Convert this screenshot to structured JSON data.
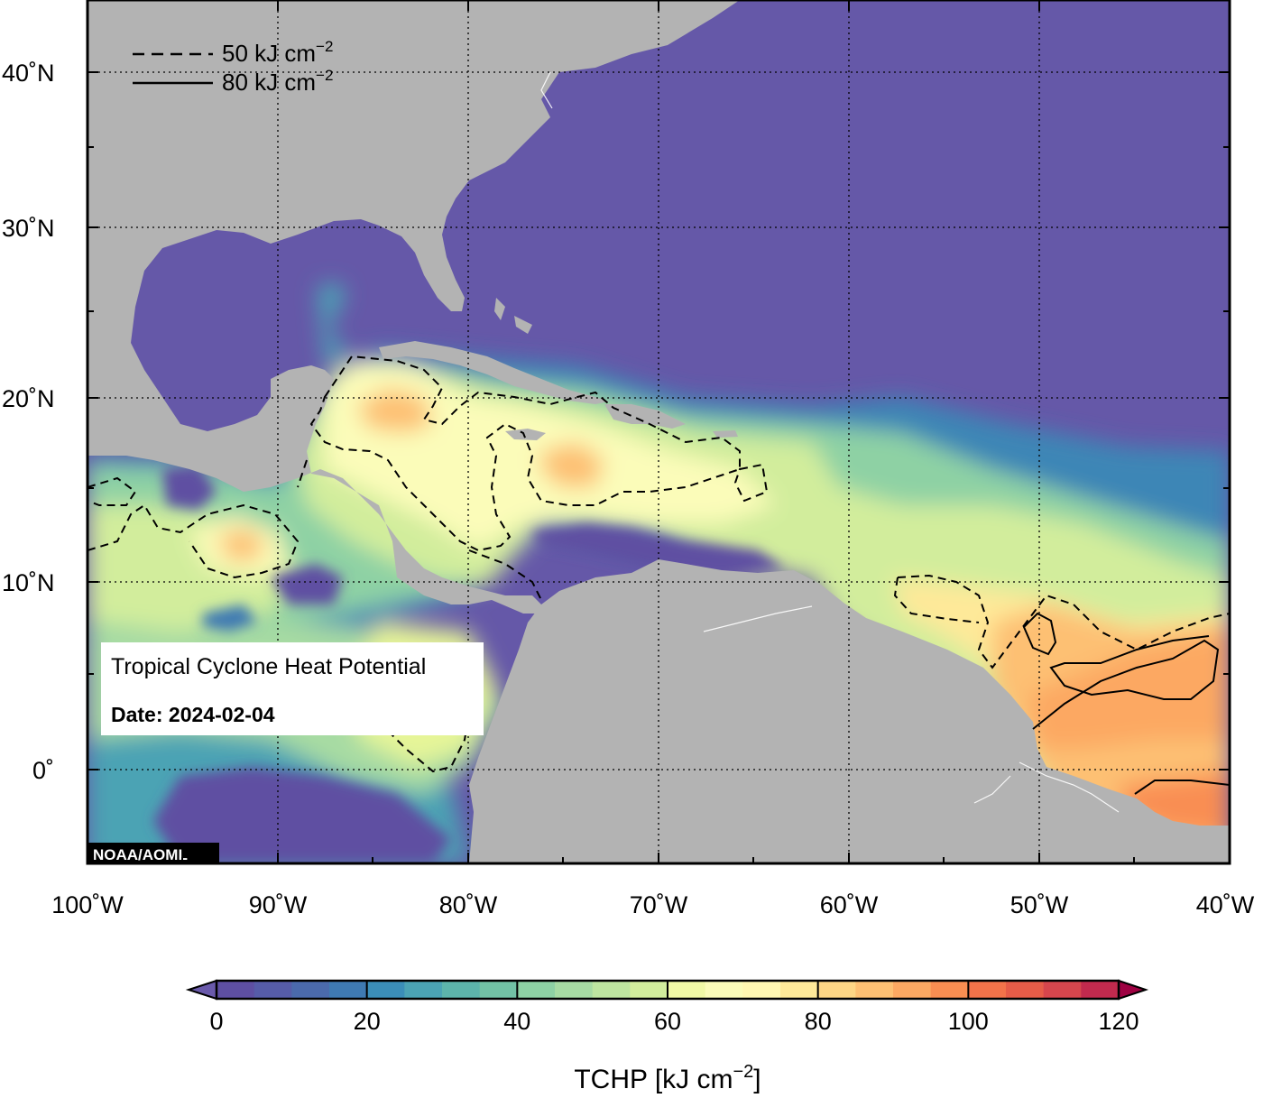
{
  "map": {
    "product_title": "Tropical Cyclone Heat Potential",
    "date_label": "Date: 2024-02-04",
    "credit": "NOAA/AOML",
    "lat_ticks": [
      {
        "value": 40,
        "label": "40˚N"
      },
      {
        "value": 30,
        "label": "30˚N"
      },
      {
        "value": 20,
        "label": "20˚N"
      },
      {
        "value": 10,
        "label": "10˚N"
      },
      {
        "value": 0,
        "label": "0˚"
      }
    ],
    "lon_ticks": [
      {
        "value": -100,
        "label": "100˚W"
      },
      {
        "value": -90,
        "label": "90˚W"
      },
      {
        "value": -80,
        "label": "80˚W"
      },
      {
        "value": -70,
        "label": "70˚W"
      },
      {
        "value": -60,
        "label": "60˚W"
      },
      {
        "value": -50,
        "label": "50˚W"
      },
      {
        "value": -40,
        "label": "40˚W"
      }
    ],
    "extent": {
      "lon_min": -100,
      "lon_max": -40,
      "lat_min": -5,
      "lat_max": 44
    },
    "colors": {
      "land": "#b3b3b3",
      "cold_water": "#6558a8",
      "frame": "#000000"
    }
  },
  "legend": {
    "items": [
      {
        "style": "dashed",
        "text": "50 kJ cm",
        "sup": "−2"
      },
      {
        "style": "solid",
        "text": "80 kJ cm",
        "sup": "−2"
      }
    ]
  },
  "colorbar": {
    "title": "TCHP [kJ cm",
    "title_sup": "−2",
    "title_end": "]",
    "min": 0,
    "max": 120,
    "step": 5,
    "tick_labels": [
      "0",
      "20",
      "40",
      "60",
      "80",
      "100",
      "120"
    ],
    "colors": [
      "#5e4fa2",
      "#565ca8",
      "#4b6aac",
      "#3f7ab2",
      "#3b8eb8",
      "#4ba3b4",
      "#5db4ab",
      "#72c2a5",
      "#8ed1a4",
      "#a7dba3",
      "#bee5a0",
      "#d2ed9c",
      "#e6f598",
      "#f1f9a6",
      "#fbfcb9",
      "#fff7b2",
      "#fee999",
      "#fdd685",
      "#fdc073",
      "#fca862",
      "#f98e52",
      "#f3734a",
      "#e65c48",
      "#d6464d",
      "#c22a4e",
      "#a7114a"
    ],
    "under_color": "#6a5aab",
    "over_color": "#9e0142"
  }
}
